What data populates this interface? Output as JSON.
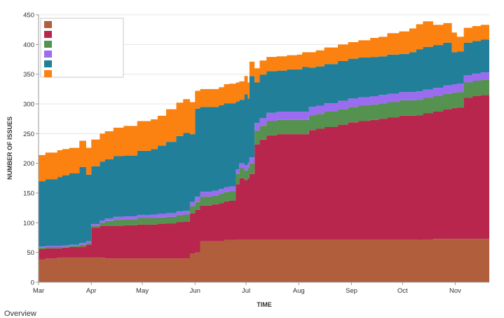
{
  "chart_data": {
    "type": "area",
    "stacked": true,
    "xlabel": "TIME",
    "ylabel": "NUMBER OF ISSUES",
    "ylim": [
      0,
      450
    ],
    "yticks": [
      0,
      50,
      100,
      150,
      200,
      250,
      300,
      350,
      400,
      450
    ],
    "xlim": [
      0,
      265
    ],
    "xticks": [
      {
        "label": "Mar",
        "x": 0
      },
      {
        "label": "Apr",
        "x": 31
      },
      {
        "label": "May",
        "x": 61
      },
      {
        "label": "Jun",
        "x": 92
      },
      {
        "label": "Jul",
        "x": 122
      },
      {
        "label": "Aug",
        "x": 153
      },
      {
        "label": "Sep",
        "x": 184
      },
      {
        "label": "Oct",
        "x": 214
      },
      {
        "label": "Nov",
        "x": 245
      }
    ],
    "grid": true,
    "legend_position": "top-left",
    "x": [
      0,
      4,
      11,
      14,
      18,
      24,
      28,
      31,
      36,
      39,
      44,
      50,
      58,
      66,
      70,
      75,
      81,
      85,
      89,
      92,
      95,
      102,
      106,
      109,
      112,
      116,
      118,
      121,
      123,
      124,
      127,
      130,
      134,
      140,
      146,
      152,
      155,
      159,
      163,
      168,
      176,
      182,
      188,
      195,
      200,
      205,
      212,
      218,
      222,
      226,
      232,
      238,
      243,
      246,
      250,
      255,
      260,
      265
    ],
    "series": [
      {
        "name": "",
        "color": "#b05e3c",
        "values": [
          38,
          40,
          41,
          42,
          42,
          42,
          42,
          42,
          41,
          40,
          40,
          40,
          40,
          40,
          40,
          40,
          40,
          40,
          48,
          50,
          69,
          69,
          69,
          71,
          71,
          72,
          72,
          72,
          72,
          72,
          72,
          72,
          72,
          72,
          72,
          72,
          72,
          72,
          72,
          72,
          72,
          72,
          72,
          72,
          72,
          72,
          72,
          72,
          71,
          72,
          73,
          73,
          73,
          73,
          73,
          73,
          73,
          73
        ]
      },
      {
        "name": "",
        "color": "#b8264e",
        "values": [
          18,
          17,
          16,
          16,
          17,
          18,
          21,
          50,
          54,
          55,
          55,
          56,
          57,
          57,
          58,
          59,
          61,
          62,
          68,
          72,
          60,
          62,
          64,
          65,
          66,
          93,
          103,
          100,
          103,
          110,
          160,
          168,
          175,
          177,
          177,
          177,
          177,
          184,
          186,
          189,
          193,
          197,
          199,
          201,
          203,
          205,
          208,
          208,
          210,
          212,
          214,
          218,
          220,
          221,
          237,
          240,
          242,
          245
        ]
      },
      {
        "name": "",
        "color": "#55914f",
        "values": [
          2,
          2,
          2,
          2,
          2,
          3,
          3,
          3,
          5,
          8,
          10,
          10,
          11,
          11,
          11,
          11,
          12,
          12,
          12,
          13,
          15,
          15,
          16,
          16,
          16,
          17,
          17,
          16,
          17,
          18,
          23,
          23,
          24,
          24,
          24,
          24,
          24,
          25,
          25,
          26,
          26,
          26,
          26,
          26,
          26,
          26,
          26,
          26,
          26,
          26,
          26,
          26,
          26,
          26,
          26,
          26,
          26,
          26
        ]
      },
      {
        "name": "",
        "color": "#9b6bf0",
        "values": [
          2,
          2,
          2,
          2,
          2,
          3,
          3,
          3,
          4,
          4,
          5,
          5,
          5,
          6,
          6,
          6,
          6,
          6,
          7,
          9,
          8,
          8,
          8,
          8,
          8,
          8,
          8,
          9,
          9,
          10,
          13,
          13,
          14,
          14,
          14,
          14,
          14,
          14,
          14,
          14,
          14,
          14,
          14,
          14,
          14,
          14,
          14,
          14,
          14,
          14,
          14,
          14,
          14,
          14,
          12,
          12,
          12,
          12
        ]
      },
      {
        "name": "",
        "color": "#217f9a",
        "values": [
          110,
          112,
          116,
          118,
          120,
          128,
          112,
          97,
          99,
          100,
          102,
          102,
          108,
          110,
          115,
          120,
          127,
          131,
          114,
          148,
          143,
          141,
          141,
          141,
          140,
          114,
          107,
          119,
          108,
          137,
          68,
          73,
          70,
          69,
          71,
          71,
          75,
          66,
          66,
          66,
          67,
          67,
          67,
          66,
          65,
          66,
          64,
          67,
          71,
          72,
          72,
          72,
          54,
          54,
          55,
          55,
          55,
          55
        ]
      },
      {
        "name": "",
        "color": "#fb8110",
        "values": [
          44,
          45,
          45,
          44,
          43,
          44,
          45,
          45,
          47,
          47,
          48,
          50,
          50,
          50,
          50,
          55,
          56,
          57,
          54,
          30,
          30,
          30,
          30,
          32,
          33,
          32,
          31,
          31,
          27,
          24,
          24,
          24,
          24,
          24,
          24,
          25,
          25,
          26,
          27,
          28,
          28,
          28,
          29,
          32,
          33,
          36,
          38,
          40,
          42,
          43,
          34,
          33,
          33,
          25,
          25,
          25,
          25,
          28
        ]
      }
    ]
  },
  "page": {
    "caption": "Overview"
  }
}
